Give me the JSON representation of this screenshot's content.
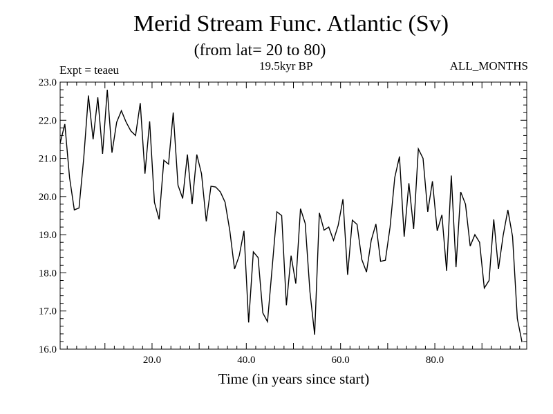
{
  "chart_data": {
    "type": "line",
    "title": "Merid Stream Func. Atlantic (Sv)",
    "subtitle": "(from lat= 20 to 80)",
    "annotations": {
      "left": "Expt = teaeu",
      "center": "19.5kyr BP",
      "right": "ALL_MONTHS"
    },
    "xlabel": "Time (in years since start)",
    "ylabel": "",
    "xlim": [
      0.5,
      99.5
    ],
    "ylim": [
      16.0,
      23.0
    ],
    "x_ticks": [
      20,
      40,
      60,
      80
    ],
    "x_tick_labels": [
      "20.0",
      "40.0",
      "60.0",
      "80.0"
    ],
    "y_ticks": [
      16,
      17,
      18,
      19,
      20,
      21,
      22,
      23
    ],
    "y_tick_labels": [
      "16.0",
      "17.0",
      "18.0",
      "19.0",
      "20.0",
      "21.0",
      "22.0",
      "23.0"
    ],
    "x_start": 0.5,
    "x_step": 1,
    "series": [
      {
        "name": "Merid Stream Func. Atlantic",
        "values": [
          21.4,
          21.9,
          20.5,
          19.65,
          19.7,
          21.0,
          22.65,
          21.5,
          22.6,
          21.12,
          22.8,
          21.15,
          21.95,
          22.25,
          21.95,
          21.72,
          21.6,
          22.45,
          20.6,
          21.97,
          19.85,
          19.4,
          20.95,
          20.85,
          22.2,
          20.3,
          19.95,
          21.1,
          19.8,
          21.1,
          20.6,
          19.35,
          20.27,
          20.25,
          20.12,
          19.85,
          19.1,
          18.1,
          18.45,
          19.1,
          16.7,
          18.55,
          18.4,
          16.95,
          16.72,
          18.15,
          19.6,
          19.5,
          17.15,
          18.45,
          17.72,
          19.68,
          19.3,
          17.5,
          16.38,
          19.57,
          19.12,
          19.2,
          18.85,
          19.25,
          19.93,
          17.95,
          19.38,
          19.27,
          18.35,
          18.02,
          18.85,
          19.28,
          18.3,
          18.33,
          19.2,
          20.5,
          21.05,
          18.95,
          20.35,
          19.15,
          21.25,
          21.0,
          19.6,
          20.4,
          19.1,
          19.52,
          18.05,
          20.55,
          18.15,
          20.12,
          19.8,
          18.7,
          19.0,
          18.8,
          17.6,
          17.8,
          19.4,
          18.1,
          18.98,
          19.65,
          18.95,
          16.8,
          16.18
        ]
      }
    ]
  }
}
